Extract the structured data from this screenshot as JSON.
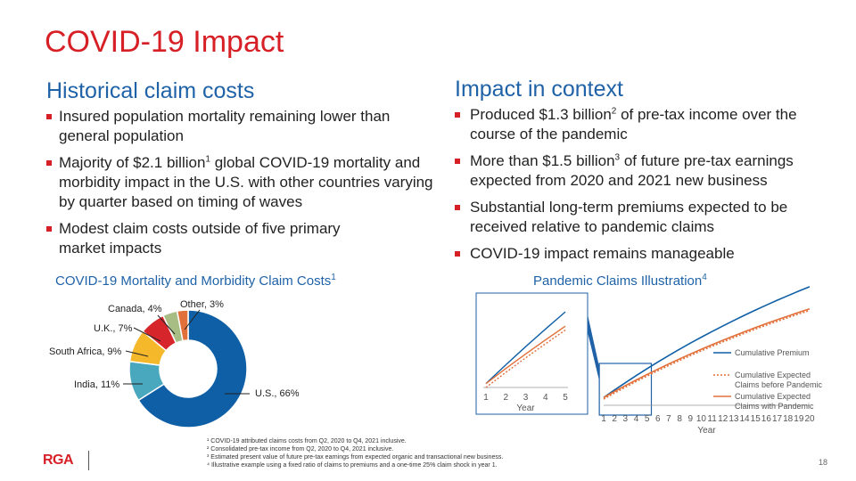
{
  "title": "COVID-19 Impact",
  "left": {
    "heading": "Historical claim costs",
    "bullets": [
      {
        "pre": " Insured population mortality remaining lower than general population",
        "sup": "",
        "post": ""
      },
      {
        "pre": "Majority of $2.1 billion",
        "sup": "1",
        "post": " global COVID-19 mortality and morbidity impact in the U.S. with other countries varying by quarter based on timing of waves"
      },
      {
        "pre": "Modest claim costs outside of five primary market impacts",
        "sup": "",
        "post": ""
      }
    ]
  },
  "right": {
    "heading": "Impact in context",
    "bullets": [
      {
        "pre": "Produced $1.3 billion",
        "sup": "2",
        "post": " of pre-tax income over the course of the pandemic"
      },
      {
        "pre": "More than $1.5 billion",
        "sup": "3",
        "post": " of future pre-tax earnings expected from 2020 and 2021 new business"
      },
      {
        "pre": "Substantial long-term premiums expected to be received relative to pandemic claims",
        "sup": "",
        "post": ""
      },
      {
        "pre": "COVID-19 impact remains manageable",
        "sup": "",
        "post": ""
      }
    ]
  },
  "pie_title": "COVID-19 Mortality and Morbidity Claim Costs",
  "pie_title_sup": "1",
  "line_title": "Pandemic Claims Illustration",
  "line_title_sup": "4",
  "footnotes": [
    "¹ COVID-19 attributed claims costs from Q2, 2020 to Q4, 2021 inclusive.",
    "² Consolidated pre-tax income from Q2, 2020 to Q4, 2021 inclusive.",
    "³ Estimated present value of future pre-tax earnings from expected organic and transactional new business.",
    "⁴ Illustrative example using a fixed ratio of claims to premiums and a one-time 25% claim shock in year 1."
  ],
  "page_number": "18",
  "logo_text": "RGA",
  "chart_data": [
    {
      "type": "pie",
      "title": "COVID-19 Mortality and Morbidity Claim Costs",
      "slices": [
        {
          "label": "U.S., 66%",
          "value": 66,
          "color": "#0f5fa6"
        },
        {
          "label": "India, 11%",
          "value": 11,
          "color": "#4aa8be"
        },
        {
          "label": "South Africa, 9%",
          "value": 9,
          "color": "#f4b82a"
        },
        {
          "label": "U.K., 7%",
          "value": 7,
          "color": "#d7262b"
        },
        {
          "label": "Canada, 4%",
          "value": 4,
          "color": "#a7bd84"
        },
        {
          "label": "Other, 3%",
          "value": 3,
          "color": "#e2703a"
        }
      ]
    },
    {
      "type": "line",
      "title": "Pandemic Claims Illustration",
      "xlabel": "Year",
      "x": [
        1,
        2,
        3,
        4,
        5,
        6,
        7,
        8,
        9,
        10,
        11,
        12,
        13,
        14,
        15,
        16,
        17,
        18,
        19,
        20
      ],
      "series": [
        {
          "name": "Cumulative Premium",
          "color": "#0f5fa6",
          "style": "solid",
          "values": [
            1.0,
            1.97,
            2.91,
            3.82,
            4.71,
            5.57,
            6.41,
            7.22,
            8.01,
            8.77,
            9.51,
            10.23,
            10.93,
            11.61,
            12.27,
            12.91,
            13.53,
            14.13,
            14.72,
            15.29
          ]
        },
        {
          "name": "Cumulative Expected Claims before Pandemic",
          "color": "#e2703a",
          "style": "dotted",
          "values": [
            0.8,
            1.58,
            2.33,
            3.06,
            3.77,
            4.46,
            5.13,
            5.78,
            6.41,
            7.02,
            7.61,
            8.18,
            8.74,
            9.29,
            9.82,
            10.33,
            10.82,
            11.3,
            11.78,
            12.23
          ]
        },
        {
          "name": "Cumulative Expected Claims with Pandemic",
          "color": "#e2703a",
          "style": "solid",
          "values": [
            1.0,
            1.78,
            2.53,
            3.26,
            3.97,
            4.66,
            5.33,
            5.98,
            6.61,
            7.22,
            7.81,
            8.38,
            8.94,
            9.49,
            10.02,
            10.53,
            11.02,
            11.5,
            11.98,
            12.43
          ]
        }
      ],
      "inset": {
        "xlabel": "Year",
        "x": [
          1,
          2,
          3,
          4,
          5
        ]
      }
    }
  ]
}
